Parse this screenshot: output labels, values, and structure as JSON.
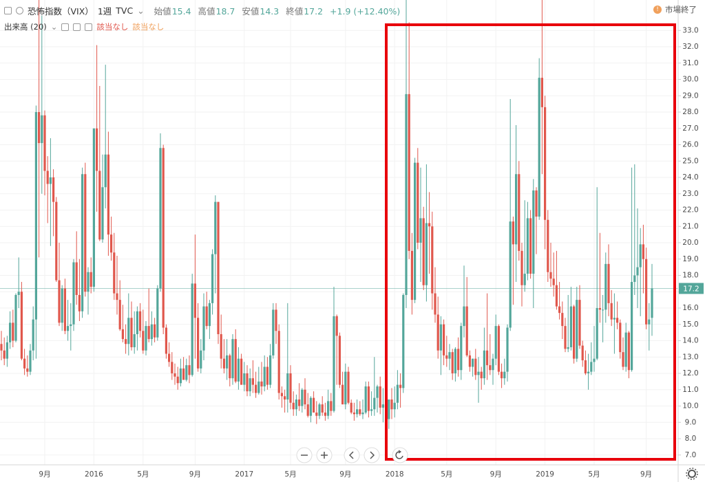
{
  "chart_data": {
    "type": "candlestick",
    "symbol": "恐怖指数（VIX）",
    "interval": "1週",
    "source": "TVC",
    "ohlc_labels": [
      "始値",
      "高値",
      "安値",
      "終値"
    ],
    "change": "+1.9 (+12.40%)",
    "status": "市場終了",
    "volume_label": "出来高 (20)",
    "volume_values": [
      "該当なし",
      "該当なし"
    ],
    "up_color": "#53a69a",
    "down_color": "#e0574c",
    "grid": true,
    "ylim": [
      6.4,
      33.6
    ],
    "yticks": [
      {
        "value": 7,
        "label": "7.0"
      },
      {
        "value": 8,
        "label": "8.0"
      },
      {
        "value": 9,
        "label": "9.0"
      },
      {
        "value": 10,
        "label": "10.0"
      },
      {
        "value": 11,
        "label": "11.0"
      },
      {
        "value": 12,
        "label": "12.0"
      },
      {
        "value": 13,
        "label": "13.0"
      },
      {
        "value": 14,
        "label": "14.0"
      },
      {
        "value": 15,
        "label": "15.0"
      },
      {
        "value": 16,
        "label": "16.0"
      },
      {
        "value": 17,
        "label": "17.0"
      },
      {
        "value": 18,
        "label": "18.0"
      },
      {
        "value": 19,
        "label": "19.0"
      },
      {
        "value": 20,
        "label": "20.0"
      },
      {
        "value": 21,
        "label": "21.0"
      },
      {
        "value": 22,
        "label": "22.0"
      },
      {
        "value": 23,
        "label": "23.0"
      },
      {
        "value": 24,
        "label": "24.0"
      },
      {
        "value": 25,
        "label": "25.0"
      },
      {
        "value": 26,
        "label": "26.0"
      },
      {
        "value": 27,
        "label": "27.0"
      },
      {
        "value": 28,
        "label": "28.0"
      },
      {
        "value": 29,
        "label": "29.0"
      },
      {
        "value": 30,
        "label": "30.0"
      },
      {
        "value": 31,
        "label": "31.0"
      },
      {
        "value": 32,
        "label": "32.0"
      },
      {
        "value": 33,
        "label": "33.0"
      }
    ],
    "xticks": [
      {
        "value": 15,
        "label": "9月"
      },
      {
        "value": 32,
        "label": "2016"
      },
      {
        "value": 49,
        "label": "5月"
      },
      {
        "value": 67,
        "label": "9月"
      },
      {
        "value": 84,
        "label": "2017"
      },
      {
        "value": 100,
        "label": "5月"
      },
      {
        "value": 119,
        "label": "9月"
      },
      {
        "value": 136,
        "label": "2018"
      },
      {
        "value": 154,
        "label": "5月"
      },
      {
        "value": 171,
        "label": "9月"
      },
      {
        "value": 188,
        "label": "2019"
      },
      {
        "value": 205,
        "label": "5月"
      },
      {
        "value": 223,
        "label": "9月"
      }
    ],
    "ohlc": [
      [
        13.8,
        14.6,
        12.8,
        13.4
      ],
      [
        13.4,
        14.2,
        12.5,
        12.9
      ],
      [
        12.9,
        14.3,
        12.4,
        13.9
      ],
      [
        13.9,
        15.8,
        13.5,
        15.1
      ],
      [
        15.1,
        15.9,
        13.6,
        14.0
      ],
      [
        14.0,
        16.9,
        13.9,
        16.8
      ],
      [
        16.8,
        19.1,
        16.0,
        17.0
      ],
      [
        17.0,
        17.6,
        12.8,
        12.9
      ],
      [
        12.9,
        13.5,
        11.9,
        12.3
      ],
      [
        12.3,
        13.1,
        11.8,
        12.1
      ],
      [
        12.1,
        13.8,
        11.9,
        13.4
      ],
      [
        13.4,
        16.1,
        12.8,
        15.3
      ],
      [
        15.3,
        28.4,
        12.9,
        28.0
      ],
      [
        28.0,
        40.7,
        19.1,
        26.1
      ],
      [
        26.1,
        33.9,
        23.0,
        27.8
      ],
      [
        27.8,
        28.1,
        22.9,
        24.4
      ],
      [
        24.4,
        25.3,
        21.2,
        23.6
      ],
      [
        23.6,
        26.4,
        19.8,
        24.0
      ],
      [
        24.0,
        24.5,
        20.4,
        22.5
      ],
      [
        22.5,
        22.8,
        17.6,
        17.7
      ],
      [
        17.7,
        20.0,
        14.9,
        15.1
      ],
      [
        15.1,
        17.4,
        14.6,
        17.2
      ],
      [
        17.2,
        17.8,
        14.4,
        14.6
      ],
      [
        14.6,
        16.5,
        14.0,
        14.9
      ],
      [
        14.9,
        16.3,
        13.4,
        15.0
      ],
      [
        15.0,
        19.0,
        14.6,
        18.8
      ],
      [
        18.8,
        20.7,
        16.2,
        16.8
      ],
      [
        16.8,
        19.0,
        15.2,
        15.8
      ],
      [
        15.8,
        24.6,
        15.4,
        24.2
      ],
      [
        24.2,
        24.9,
        16.7,
        17.0
      ],
      [
        17.0,
        18.5,
        15.6,
        18.2
      ],
      [
        18.2,
        19.1,
        16.9,
        17.3
      ],
      [
        17.3,
        27.0,
        17.0,
        27.0
      ],
      [
        27.0,
        32.1,
        21.9,
        24.4
      ],
      [
        24.4,
        29.6,
        20.1,
        20.2
      ],
      [
        20.2,
        25.4,
        20.0,
        23.4
      ],
      [
        23.4,
        30.9,
        22.1,
        25.4
      ],
      [
        25.4,
        26.8,
        19.2,
        20.5
      ],
      [
        20.5,
        21.6,
        18.9,
        19.4
      ],
      [
        19.4,
        20.6,
        16.5,
        16.9
      ],
      [
        16.9,
        19.2,
        15.6,
        16.5
      ],
      [
        16.5,
        17.7,
        14.6,
        14.7
      ],
      [
        14.7,
        16.2,
        13.9,
        14.1
      ],
      [
        14.1,
        15.0,
        13.2,
        13.8
      ],
      [
        13.8,
        16.9,
        13.1,
        15.4
      ],
      [
        15.4,
        16.4,
        13.4,
        13.6
      ],
      [
        13.6,
        15.8,
        13.2,
        14.4
      ],
      [
        14.4,
        16.1,
        13.4,
        15.8
      ],
      [
        15.8,
        16.3,
        14.2,
        14.6
      ],
      [
        14.6,
        15.9,
        13.2,
        13.4
      ],
      [
        13.4,
        15.2,
        13.1,
        14.9
      ],
      [
        14.9,
        17.2,
        13.9,
        14.1
      ],
      [
        14.1,
        15.8,
        13.7,
        15.0
      ],
      [
        15.0,
        15.4,
        13.9,
        14.2
      ],
      [
        14.2,
        17.4,
        14.0,
        17.2
      ],
      [
        17.2,
        26.7,
        17.0,
        25.8
      ],
      [
        25.8,
        26.0,
        14.4,
        14.8
      ],
      [
        14.8,
        15.0,
        12.9,
        13.2
      ],
      [
        13.2,
        13.9,
        12.4,
        12.7
      ],
      [
        12.7,
        13.3,
        11.6,
        12.0
      ],
      [
        12.0,
        12.6,
        11.3,
        11.8
      ],
      [
        11.8,
        12.4,
        11.0,
        11.4
      ],
      [
        11.4,
        12.9,
        11.2,
        12.3
      ],
      [
        12.3,
        13.0,
        11.7,
        11.6
      ],
      [
        11.6,
        12.9,
        11.5,
        12.5
      ],
      [
        12.5,
        13.1,
        11.4,
        11.9
      ],
      [
        11.9,
        18.1,
        11.8,
        17.5
      ],
      [
        17.5,
        20.5,
        12.9,
        15.4
      ],
      [
        15.4,
        16.3,
        12.1,
        12.3
      ],
      [
        12.3,
        14.1,
        12.0,
        13.4
      ],
      [
        13.4,
        16.9,
        12.8,
        16.1
      ],
      [
        16.1,
        17.0,
        14.7,
        14.9
      ],
      [
        14.9,
        16.5,
        14.1,
        16.3
      ],
      [
        16.3,
        19.6,
        15.6,
        19.3
      ],
      [
        19.3,
        22.9,
        16.9,
        22.5
      ],
      [
        22.5,
        22.5,
        13.8,
        14.4
      ],
      [
        14.4,
        15.6,
        12.3,
        12.9
      ],
      [
        12.9,
        14.1,
        12.0,
        12.3
      ],
      [
        12.3,
        14.1,
        11.6,
        13.1
      ],
      [
        13.1,
        13.2,
        11.2,
        11.7
      ],
      [
        11.7,
        14.4,
        11.3,
        14.1
      ],
      [
        14.1,
        14.7,
        11.4,
        11.5
      ],
      [
        11.5,
        13.6,
        11.0,
        12.9
      ],
      [
        12.9,
        13.2,
        11.3,
        11.3
      ],
      [
        11.3,
        12.7,
        10.9,
        12.0
      ],
      [
        12.0,
        12.5,
        10.6,
        10.9
      ],
      [
        10.9,
        12.3,
        10.6,
        11.7
      ],
      [
        11.7,
        12.8,
        10.8,
        11.3
      ],
      [
        11.3,
        12.1,
        10.5,
        10.8
      ],
      [
        10.8,
        12.4,
        10.7,
        11.5
      ],
      [
        11.5,
        12.7,
        10.7,
        11.2
      ],
      [
        11.2,
        13.1,
        10.9,
        12.4
      ],
      [
        12.4,
        13.0,
        11.0,
        11.3
      ],
      [
        11.3,
        13.8,
        11.1,
        13.1
      ],
      [
        13.1,
        16.3,
        12.9,
        15.9
      ],
      [
        15.9,
        16.3,
        13.8,
        14.6
      ],
      [
        14.6,
        15.0,
        10.4,
        10.8
      ],
      [
        10.8,
        11.2,
        9.9,
        10.6
      ],
      [
        10.6,
        11.0,
        9.6,
        10.4
      ],
      [
        10.4,
        16.3,
        9.6,
        12.0
      ],
      [
        12.0,
        12.5,
        9.8,
        10.2
      ],
      [
        10.2,
        10.9,
        9.4,
        9.8
      ],
      [
        9.8,
        10.7,
        9.4,
        10.4
      ],
      [
        10.4,
        11.4,
        9.7,
        10.0
      ],
      [
        10.0,
        11.1,
        9.6,
        11.0
      ],
      [
        11.0,
        11.7,
        9.8,
        10.1
      ],
      [
        10.1,
        10.8,
        9.3,
        9.4
      ],
      [
        9.4,
        10.6,
        9.0,
        10.5
      ],
      [
        10.5,
        10.9,
        9.6,
        9.6
      ],
      [
        9.6,
        10.3,
        8.9,
        9.4
      ],
      [
        9.4,
        10.2,
        9.2,
        10.1
      ],
      [
        10.1,
        10.6,
        9.4,
        9.6
      ],
      [
        9.6,
        10.2,
        9.1,
        9.4
      ],
      [
        9.4,
        11.0,
        9.2,
        10.3
      ],
      [
        10.3,
        10.8,
        9.4,
        9.7
      ],
      [
        9.7,
        17.3,
        9.6,
        15.5
      ],
      [
        15.5,
        15.6,
        11.3,
        14.3
      ],
      [
        14.3,
        14.5,
        11.1,
        11.3
      ],
      [
        11.3,
        12.1,
        10.1,
        10.1
      ],
      [
        10.1,
        12.6,
        9.8,
        12.1
      ],
      [
        12.1,
        12.4,
        10.1,
        10.2
      ],
      [
        10.2,
        10.4,
        9.5,
        9.6
      ],
      [
        9.6,
        10.2,
        9.1,
        9.5
      ],
      [
        9.5,
        10.4,
        9.3,
        9.8
      ],
      [
        9.8,
        10.3,
        9.4,
        9.5
      ],
      [
        9.5,
        10.4,
        9.2,
        9.6
      ],
      [
        9.6,
        11.5,
        9.5,
        11.2
      ],
      [
        11.2,
        11.5,
        9.3,
        9.7
      ],
      [
        9.7,
        10.9,
        9.4,
        9.8
      ],
      [
        9.8,
        13.0,
        9.4,
        10.5
      ],
      [
        10.5,
        11.3,
        9.6,
        11.2
      ],
      [
        11.2,
        11.8,
        9.5,
        9.9
      ],
      [
        9.9,
        11.1,
        9.0,
        10.1
      ],
      [
        10.1,
        11.1,
        9.1,
        9.2
      ],
      [
        9.2,
        10.4,
        8.6,
        10.4
      ],
      [
        10.4,
        11.1,
        9.2,
        9.8
      ],
      [
        9.8,
        11.2,
        9.3,
        10.2
      ],
      [
        10.2,
        12.2,
        9.8,
        11.3
      ],
      [
        11.3,
        12.0,
        9.9,
        11.1
      ],
      [
        11.1,
        16.9,
        10.8,
        16.8
      ],
      [
        16.8,
        50.3,
        16.0,
        29.1
      ],
      [
        29.1,
        33.5,
        19.0,
        19.5
      ],
      [
        19.5,
        20.6,
        15.6,
        16.5
      ],
      [
        16.5,
        25.2,
        16.3,
        24.9
      ],
      [
        24.9,
        25.8,
        19.6,
        20.0
      ],
      [
        20.0,
        24.6,
        17.6,
        21.5
      ],
      [
        21.5,
        22.2,
        17.1,
        17.4
      ],
      [
        17.4,
        24.8,
        16.4,
        21.2
      ],
      [
        21.2,
        23.1,
        18.1,
        21.0
      ],
      [
        21.0,
        21.9,
        15.9,
        16.9
      ],
      [
        16.9,
        18.5,
        15.1,
        15.6
      ],
      [
        15.6,
        16.7,
        12.9,
        13.4
      ],
      [
        13.4,
        15.5,
        11.9,
        15.0
      ],
      [
        15.0,
        15.3,
        12.5,
        13.1
      ],
      [
        13.1,
        14.3,
        12.4,
        12.9
      ],
      [
        12.9,
        13.8,
        12.2,
        13.3
      ],
      [
        13.3,
        13.5,
        11.6,
        12.0
      ],
      [
        12.0,
        13.6,
        11.5,
        13.5
      ],
      [
        13.5,
        14.2,
        11.8,
        12.2
      ],
      [
        12.2,
        15.1,
        11.6,
        14.9
      ],
      [
        14.9,
        18.6,
        14.2,
        16.1
      ],
      [
        16.1,
        17.9,
        13.0,
        13.1
      ],
      [
        13.1,
        13.4,
        12.1,
        12.4
      ],
      [
        12.4,
        12.9,
        11.8,
        12.9
      ],
      [
        12.9,
        13.5,
        11.6,
        11.9
      ],
      [
        11.9,
        13.0,
        10.2,
        12.1
      ],
      [
        12.1,
        12.4,
        11.0,
        11.7
      ],
      [
        11.7,
        14.8,
        11.3,
        13.4
      ],
      [
        13.4,
        16.9,
        11.6,
        12.5
      ],
      [
        12.5,
        14.4,
        11.9,
        12.2
      ],
      [
        12.2,
        13.2,
        11.3,
        12.9
      ],
      [
        12.9,
        15.6,
        12.5,
        14.9
      ],
      [
        14.9,
        15.0,
        11.9,
        12.1
      ],
      [
        12.1,
        12.6,
        11.1,
        11.7
      ],
      [
        11.7,
        12.9,
        11.3,
        12.1
      ],
      [
        12.1,
        15.0,
        11.5,
        14.8
      ],
      [
        14.8,
        28.8,
        14.6,
        21.3
      ],
      [
        21.3,
        21.6,
        16.2,
        19.9
      ],
      [
        19.9,
        27.2,
        17.6,
        24.2
      ],
      [
        24.2,
        25.0,
        18.9,
        19.5
      ],
      [
        19.5,
        20.0,
        16.1,
        17.4
      ],
      [
        17.4,
        22.6,
        17.0,
        18.1
      ],
      [
        18.1,
        22.5,
        17.7,
        21.5
      ],
      [
        21.5,
        22.0,
        17.8,
        18.1
      ],
      [
        18.1,
        23.9,
        16.0,
        23.2
      ],
      [
        23.2,
        23.4,
        19.3,
        21.6
      ],
      [
        21.6,
        31.3,
        21.4,
        30.1
      ],
      [
        30.1,
        36.2,
        24.2,
        28.3
      ],
      [
        28.3,
        29.0,
        19.6,
        21.4
      ],
      [
        21.4,
        22.0,
        17.6,
        18.2
      ],
      [
        18.2,
        20.0,
        17.3,
        17.8
      ],
      [
        17.8,
        19.4,
        16.7,
        17.4
      ],
      [
        17.4,
        19.5,
        15.9,
        16.1
      ],
      [
        16.1,
        17.6,
        15.3,
        15.7
      ],
      [
        15.7,
        16.4,
        14.1,
        14.9
      ],
      [
        14.9,
        15.4,
        13.3,
        13.5
      ],
      [
        13.5,
        16.8,
        13.3,
        13.6
      ],
      [
        13.6,
        17.3,
        13.4,
        16.1
      ],
      [
        16.1,
        16.2,
        12.6,
        12.9
      ],
      [
        12.9,
        17.3,
        12.7,
        16.5
      ],
      [
        16.5,
        17.4,
        13.5,
        13.7
      ],
      [
        13.7,
        14.0,
        12.4,
        12.8
      ],
      [
        12.8,
        13.4,
        11.9,
        12.0
      ],
      [
        12.0,
        13.2,
        11.0,
        12.1
      ],
      [
        12.1,
        13.9,
        11.9,
        12.7
      ],
      [
        12.7,
        14.9,
        12.1,
        12.9
      ],
      [
        12.9,
        23.4,
        12.8,
        16.0
      ],
      [
        16.0,
        20.6,
        15.1,
        15.9
      ],
      [
        15.9,
        16.8,
        13.9,
        15.9
      ],
      [
        15.9,
        19.4,
        15.1,
        18.7
      ],
      [
        18.7,
        19.9,
        15.5,
        16.3
      ],
      [
        16.3,
        17.1,
        14.9,
        15.3
      ],
      [
        15.3,
        16.9,
        13.2,
        15.4
      ],
      [
        15.4,
        16.4,
        14.7,
        15.1
      ],
      [
        15.1,
        15.3,
        12.9,
        13.3
      ],
      [
        13.3,
        14.2,
        12.2,
        12.4
      ],
      [
        12.4,
        15.1,
        12.1,
        14.5
      ],
      [
        14.5,
        14.6,
        11.7,
        12.2
      ],
      [
        12.2,
        24.6,
        12.1,
        17.6
      ],
      [
        17.6,
        24.8,
        16.8,
        18.0
      ],
      [
        18.0,
        22.1,
        16.0,
        18.5
      ],
      [
        18.5,
        20.9,
        15.5,
        19.9
      ],
      [
        19.9,
        21.1,
        16.9,
        19.0
      ],
      [
        19.0,
        19.7,
        14.7,
        15.0
      ],
      [
        15.0,
        16.3,
        13.4,
        15.3
      ],
      [
        15.4,
        18.7,
        14.3,
        17.2
      ]
    ]
  }
}
